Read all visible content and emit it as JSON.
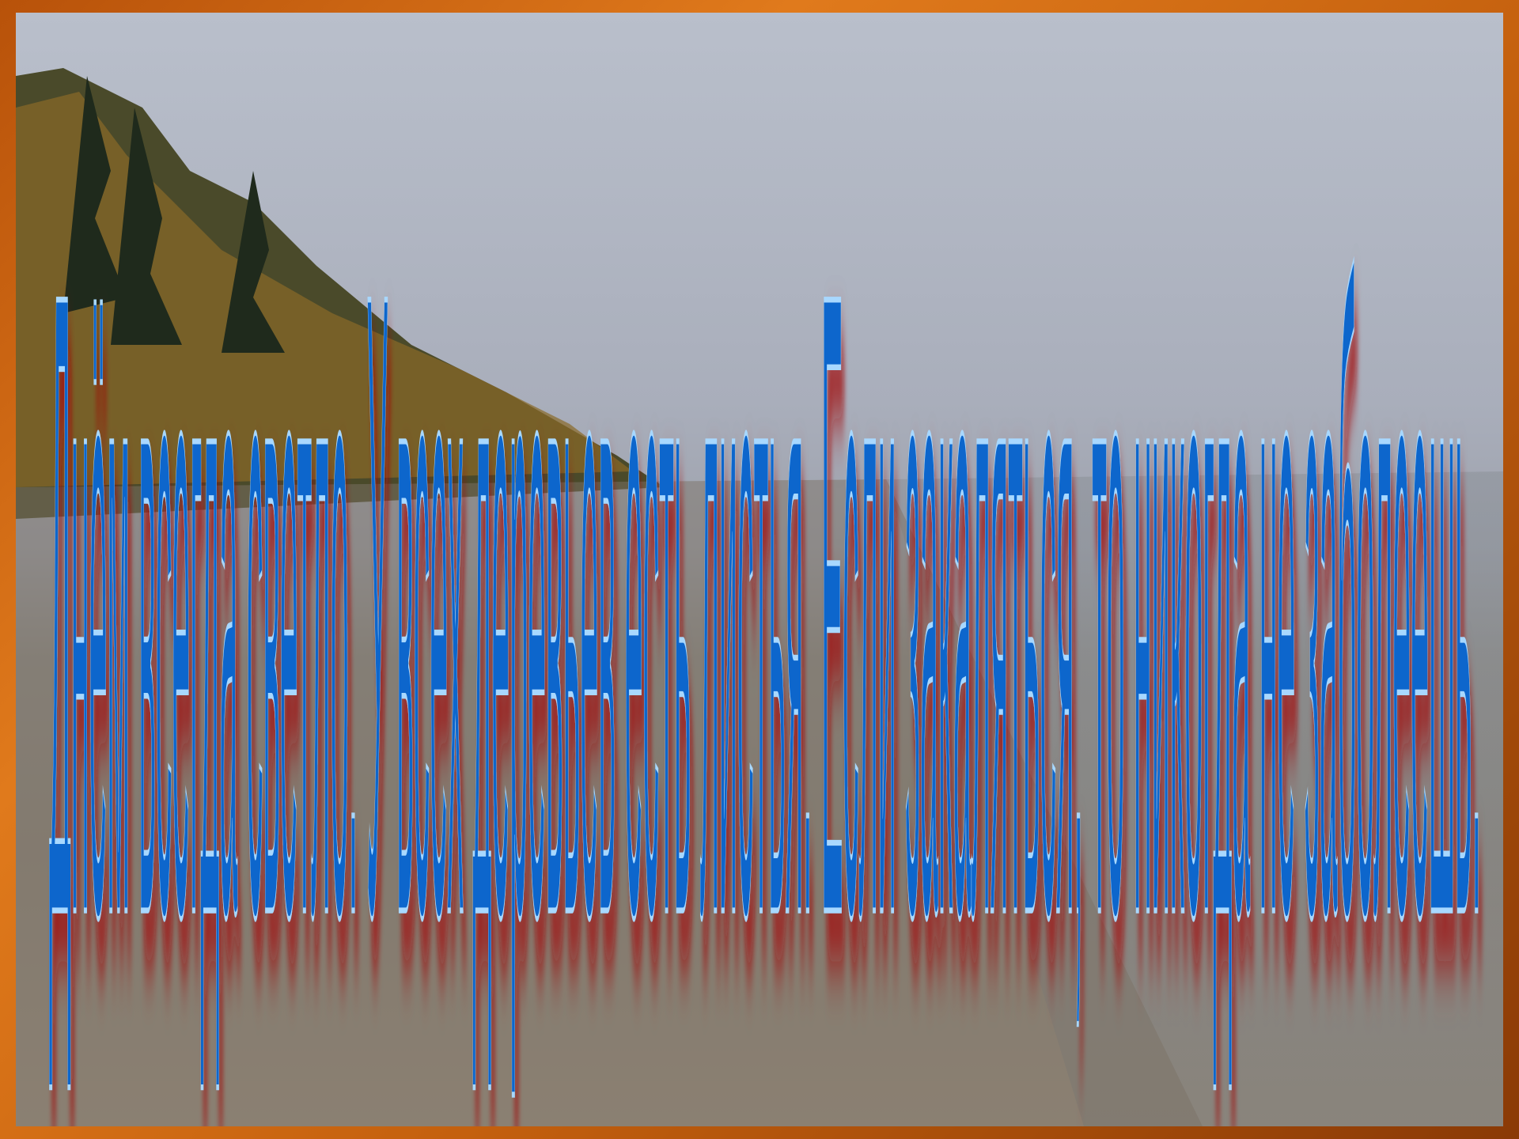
{
  "slide": {
    "text": "Днём всегда светло. У всех деревьев есть листья. Если закаляться, то никогда не заболеешь."
  }
}
